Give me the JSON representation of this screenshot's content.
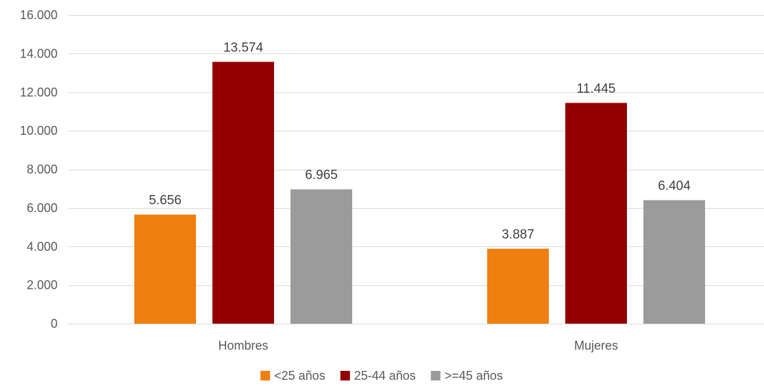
{
  "chart_data": {
    "type": "bar",
    "categories": [
      "Hombres",
      "Mujeres"
    ],
    "series": [
      {
        "name": "<25 años",
        "values": [
          5656,
          3887
        ],
        "labels": [
          "5.656",
          "3.887"
        ],
        "color": "#EF7F0F"
      },
      {
        "name": "25-44 años",
        "values": [
          13574,
          11445
        ],
        "labels": [
          "13.574",
          "11.445"
        ],
        "color": "#930000"
      },
      {
        "name": ">=45 años",
        "values": [
          6965,
          6404
        ],
        "labels": [
          "6.965",
          "6.404"
        ],
        "color": "#9B9B9B"
      }
    ],
    "ylim": [
      0,
      16000
    ],
    "yticks": [
      0,
      2000,
      4000,
      6000,
      8000,
      10000,
      12000,
      14000,
      16000
    ],
    "ytick_labels": [
      "0",
      "2.000",
      "4.000",
      "6.000",
      "8.000",
      "10.000",
      "12.000",
      "14.000",
      "16.000"
    ],
    "grid": true,
    "gridline_color": "#D9D9D9",
    "legend_position": "bottom"
  }
}
